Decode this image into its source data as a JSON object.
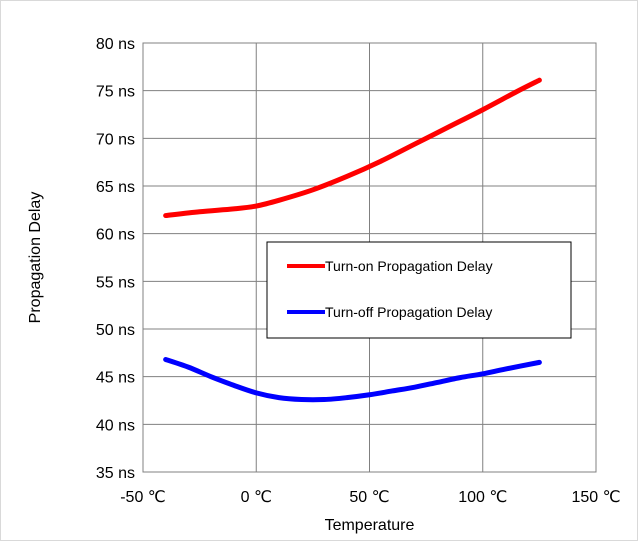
{
  "chart_data": {
    "type": "line",
    "xlabel": "Temperature",
    "ylabel": "Propagation Delay",
    "xlim": [
      -50,
      150
    ],
    "ylim": [
      35,
      80
    ],
    "x_ticks": [
      -50,
      0,
      50,
      100,
      150
    ],
    "x_tick_labels": [
      "-50 ℃",
      "0 ℃",
      "50 ℃",
      "100 ℃",
      "150 ℃"
    ],
    "y_ticks": [
      35,
      40,
      45,
      50,
      55,
      60,
      65,
      70,
      75,
      80
    ],
    "y_tick_labels": [
      "35 ns",
      "40 ns",
      "45 ns",
      "50 ns",
      "55 ns",
      "60 ns",
      "65 ns",
      "70 ns",
      "75 ns",
      "80 ns"
    ],
    "grid": true,
    "legend_position": "center-right",
    "series": [
      {
        "name": "Turn-on Propagation Delay",
        "color": "#ff0000",
        "x": [
          -40,
          -25,
          -10,
          0,
          10,
          25,
          40,
          55,
          70,
          85,
          100,
          115,
          125
        ],
        "y": [
          61.9,
          62.3,
          62.6,
          62.9,
          63.5,
          64.6,
          66.0,
          67.6,
          69.4,
          71.2,
          73.0,
          74.9,
          76.1
        ]
      },
      {
        "name": "Turn-off Propagation Delay",
        "color": "#0000ff",
        "x": [
          -40,
          -30,
          -20,
          -10,
          0,
          10,
          20,
          30,
          40,
          50,
          60,
          70,
          80,
          90,
          100,
          110,
          125
        ],
        "y": [
          46.8,
          46.0,
          45.0,
          44.1,
          43.3,
          42.8,
          42.6,
          42.6,
          42.8,
          43.1,
          43.5,
          43.9,
          44.4,
          44.9,
          45.3,
          45.8,
          46.5
        ]
      }
    ]
  }
}
